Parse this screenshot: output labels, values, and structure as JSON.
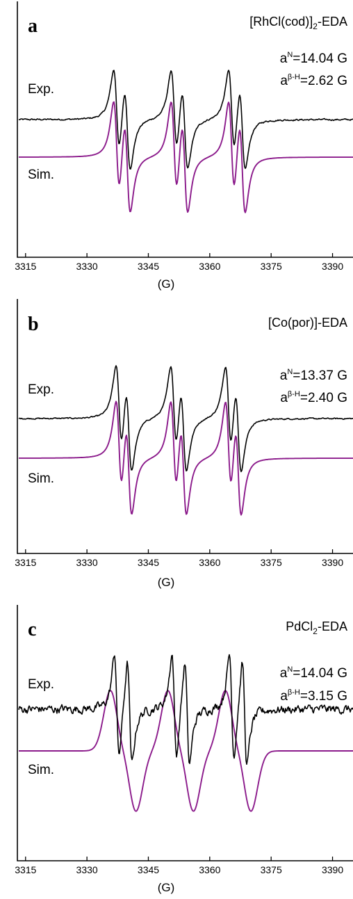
{
  "colors": {
    "exp": "#000000",
    "sim": "#8b1a8b",
    "frame": "#000000"
  },
  "chart_data": [
    {
      "type": "line",
      "panel": "a",
      "compound": [
        "[RhCl(cod)]",
        "2",
        "-EDA"
      ],
      "param_N": {
        "base": "a",
        "sup": "N",
        "value": "=14.04 G"
      },
      "param_H": {
        "base": "a",
        "sup": "β-H",
        "value": "=2.62 G"
      },
      "exp_label": "Exp.",
      "sim_label": "Sim.",
      "xlabel": "(G)",
      "xlim": [
        3313,
        3395
      ],
      "xticks": [
        3315,
        3330,
        3345,
        3360,
        3375,
        3390
      ],
      "series": [
        {
          "name": "Exp.",
          "kind": "exp",
          "center": 3352.6,
          "aN": 14.04,
          "aH": 2.62,
          "width": 1.3,
          "amp": 1.0,
          "noise": 0.35,
          "gauss": false
        },
        {
          "name": "Sim.",
          "kind": "sim",
          "center": 3352.6,
          "aN": 14.04,
          "aH": 2.62,
          "width": 1.3,
          "amp": 1.0,
          "noise": 0,
          "gauss": false
        }
      ]
    },
    {
      "type": "line",
      "panel": "b",
      "compound": [
        "[Co(por)]-EDA"
      ],
      "param_N": {
        "base": "a",
        "sup": "N",
        "value": "=13.37 G"
      },
      "param_H": {
        "base": "a",
        "sup": "β-H",
        "value": "=2.40 G"
      },
      "exp_label": "Exp.",
      "sim_label": "Sim.",
      "xlabel": "(G)",
      "xlim": [
        3313,
        3395
      ],
      "xticks": [
        3315,
        3330,
        3345,
        3360,
        3375,
        3390
      ],
      "series": [
        {
          "name": "Exp.",
          "kind": "exp",
          "center": 3352.4,
          "aN": 13.37,
          "aH": 2.4,
          "width": 1.3,
          "amp": 1.0,
          "noise": 0.28,
          "gauss": false
        },
        {
          "name": "Sim.",
          "kind": "sim",
          "center": 3352.4,
          "aN": 13.37,
          "aH": 2.4,
          "width": 1.3,
          "amp": 1.0,
          "noise": 0,
          "gauss": false
        }
      ]
    },
    {
      "type": "line",
      "panel": "c",
      "compound": [
        "PdCl",
        "2",
        "-EDA"
      ],
      "param_N": {
        "base": "a",
        "sup": "N",
        "value": "=14.04 G"
      },
      "param_H": {
        "base": "a",
        "sup": "β-H",
        "value": "=3.15 G"
      },
      "exp_label": "Exp.",
      "sim_label": "Sim.",
      "xlabel": "(G)",
      "xlim": [
        3313,
        3395
      ],
      "xticks": [
        3315,
        3330,
        3345,
        3360,
        3375,
        3390
      ],
      "series": [
        {
          "name": "Exp.",
          "kind": "exp",
          "center": 3352.9,
          "aN": 14.04,
          "aH": 3.15,
          "width": 1.0,
          "amp": 1.0,
          "noise": 1.6,
          "gauss": false
        },
        {
          "name": "Sim.",
          "kind": "sim",
          "center": 3352.9,
          "aN": 14.04,
          "aH": 3.15,
          "width": 1.9,
          "amp": 1.0,
          "noise": 0,
          "gauss": true
        }
      ]
    }
  ]
}
